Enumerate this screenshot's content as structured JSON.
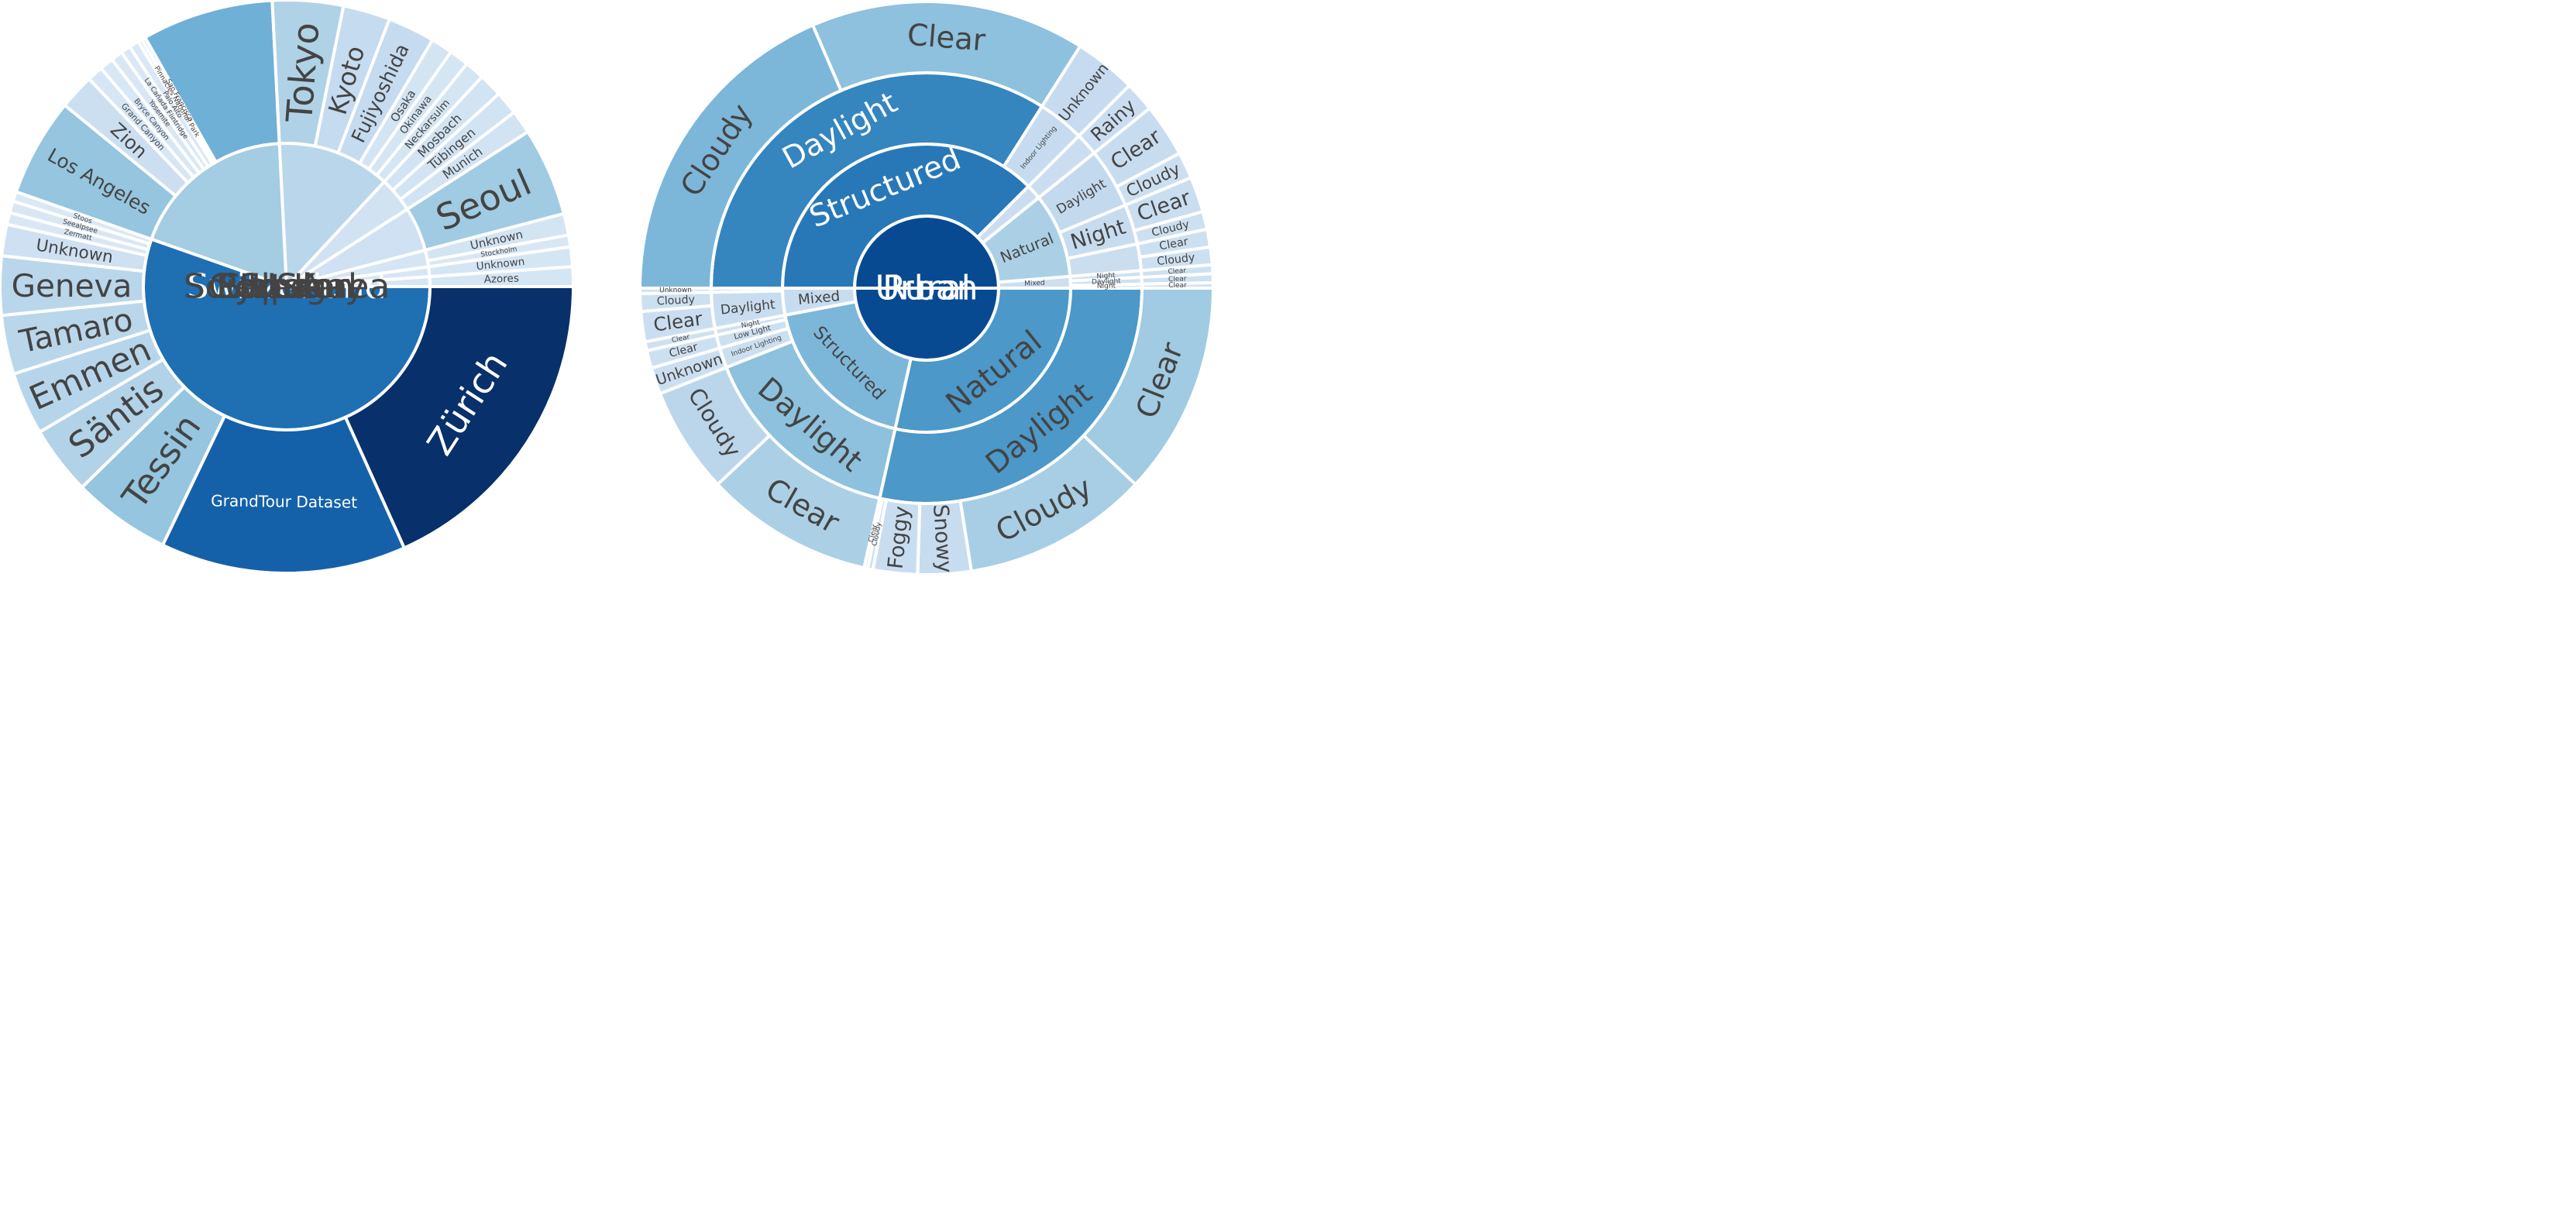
{
  "chart_data": [
    {
      "type": "sunburst",
      "root": {
        "name": "",
        "children": [
          {
            "name": "Switzerland",
            "value": 0.5,
            "children": [
              {
                "name": "Zürich",
                "value": 0.165
              },
              {
                "name": "GrandTour Dataset",
                "value": 0.125
              },
              {
                "name": "Tessin",
                "value": 0.05
              },
              {
                "name": "Säntis",
                "value": 0.035
              },
              {
                "name": "Emmen",
                "value": 0.032
              },
              {
                "name": "Tamaro",
                "value": 0.03
              },
              {
                "name": "Geneva",
                "value": 0.03
              },
              {
                "name": "Unknown",
                "value": 0.016
              },
              {
                "name": "Zermatt",
                "value": 0.006
              },
              {
                "name": "Seealpsee",
                "value": 0.006
              },
              {
                "name": "Stoos",
                "value": 0.005
              }
            ]
          },
          {
            "name": "USA",
            "value": 0.17,
            "children": [
              {
                "name": "Los Angeles",
                "value": 0.05
              },
              {
                "name": "Zion",
                "value": 0.018
              },
              {
                "name": "Grand Canyon",
                "value": 0.008
              },
              {
                "name": "Bryce Canyon",
                "value": 0.007
              },
              {
                "name": "Yosemite",
                "value": 0.006
              },
              {
                "name": "La Cañada Flintridge",
                "value": 0.005
              },
              {
                "name": "Palo Alto",
                "value": 0.005
              },
              {
                "name": "Pinnacles National Park",
                "value": 0.002
              },
              {
                "name": "San Francisco",
                "value": 0.002
              },
              {
                "name": "",
                "value": 0.067
              }
            ]
          },
          {
            "name": "Japan",
            "value": 0.115,
            "children": [
              {
                "name": "Tokyo",
                "value": 0.036
              },
              {
                "name": "Kyoto",
                "value": 0.024
              },
              {
                "name": "Fujiyoshida",
                "value": 0.024
              },
              {
                "name": "Osaka",
                "value": 0.011
              },
              {
                "name": "Okinawa",
                "value": 0.01
              },
              {
                "name": "Neckarsulm",
                "value": 0.01
              }
            ]
          },
          {
            "name": "Germany",
            "value": 0.036,
            "children": [
              {
                "name": "Mosbach",
                "value": 0.012
              },
              {
                "name": "Tübingen",
                "value": 0.012
              },
              {
                "name": "Munich",
                "value": 0.012
              }
            ]
          },
          {
            "name": "South Korea",
            "value": 0.045,
            "children": [
              {
                "name": "Seoul",
                "value": 0.045
              }
            ]
          },
          {
            "name": "Sweden",
            "value": 0.017,
            "children": [
              {
                "name": "Unknown",
                "value": 0.011
              },
              {
                "name": "Stockholm",
                "value": 0.006
              }
            ]
          },
          {
            "name": "Spain",
            "value": 0.01,
            "children": [
              {
                "name": "Unknown",
                "value": 0.01
              }
            ]
          },
          {
            "name": "Portugal",
            "value": 0.01,
            "children": [
              {
                "name": "Azores",
                "value": 0.01
              }
            ]
          }
        ]
      }
    },
    {
      "type": "sunburst",
      "root": {
        "name": "",
        "children": [
          {
            "name": "Rural",
            "value": 0.5,
            "children": [
              {
                "name": "Natural",
                "value": 0.285,
                "children": [
                  {
                    "name": "Daylight",
                    "value": 0.285,
                    "children": [
                      {
                        "name": "Clear",
                        "value": 0.12
                      },
                      {
                        "name": "Cloudy",
                        "value": 0.105
                      },
                      {
                        "name": "Snowy",
                        "value": 0.03
                      },
                      {
                        "name": "Foggy",
                        "value": 0.025
                      },
                      {
                        "name": "Cloudy",
                        "value": 0.003
                      },
                      {
                        "name": "Clear",
                        "value": 0.002
                      }
                    ]
                  }
                ]
              },
              {
                "name": "Structured",
                "value": 0.185,
                "children": [
                  {
                    "name": "Daylight",
                    "value": 0.155,
                    "children": [
                      {
                        "name": "Clear",
                        "value": 0.095
                      },
                      {
                        "name": "Cloudy",
                        "value": 0.06
                      }
                    ]
                  },
                  {
                    "name": "Indoor Lighting",
                    "value": 0.015,
                    "children": [
                      {
                        "name": "Unknown",
                        "value": 0.015
                      }
                    ]
                  },
                  {
                    "name": "Low Light",
                    "value": 0.01,
                    "children": [
                      {
                        "name": "Clear",
                        "value": 0.01
                      }
                    ]
                  },
                  {
                    "name": "Night",
                    "value": 0.005,
                    "children": [
                      {
                        "name": "Clear",
                        "value": 0.005
                      }
                    ]
                  }
                ]
              },
              {
                "name": "Mixed",
                "value": 0.03,
                "children": [
                  {
                    "name": "Daylight",
                    "value": 0.027,
                    "children": [
                      {
                        "name": "Clear",
                        "value": 0.017
                      },
                      {
                        "name": "Cloudy",
                        "value": 0.01
                      }
                    ]
                  },
                  {
                    "name": "",
                    "value": 0.003,
                    "children": [
                      {
                        "name": "Unknown",
                        "value": 0.003
                      }
                    ]
                  }
                ]
              }
            ]
          },
          {
            "name": "Urban",
            "value": 0.5,
            "children": [
              {
                "name": "Structured",
                "value": 0.375,
                "children": [
                  {
                    "name": "Daylight",
                    "value": 0.34,
                    "children": [
                      {
                        "name": "Cloudy",
                        "value": 0.185
                      },
                      {
                        "name": "Clear",
                        "value": 0.155
                      }
                    ]
                  },
                  {
                    "name": "Indoor Lighting",
                    "value": 0.035,
                    "children": [
                      {
                        "name": "Unknown",
                        "value": 0.035
                      }
                    ]
                  }
                ]
              },
              {
                "name": "",
                "value": 0.017,
                "children": [
                  {
                    "name": "",
                    "value": 0.017,
                    "children": [
                      {
                        "name": "Rainy",
                        "value": 0.017
                      }
                    ]
                  }
                ]
              },
              {
                "name": "Natural",
                "value": 0.095,
                "children": [
                  {
                    "name": "Daylight",
                    "value": 0.045,
                    "children": [
                      {
                        "name": "Clear",
                        "value": 0.03
                      },
                      {
                        "name": "Cloudy",
                        "value": 0.015
                      }
                    ]
                  },
                  {
                    "name": "Night",
                    "value": 0.03,
                    "children": [
                      {
                        "name": "Clear",
                        "value": 0.02
                      },
                      {
                        "name": "Cloudy",
                        "value": 0.01
                      }
                    ]
                  },
                  {
                    "name": "",
                    "value": 0.02,
                    "children": [
                      {
                        "name": "Clear",
                        "value": 0.01
                      },
                      {
                        "name": "Cloudy",
                        "value": 0.01
                      }
                    ]
                  }
                ]
              },
              {
                "name": "Mixed",
                "value": 0.013,
                "children": [
                  {
                    "name": "Night",
                    "value": 0.005,
                    "children": [
                      {
                        "name": "Clear",
                        "value": 0.005
                      }
                    ]
                  },
                  {
                    "name": "Daylight",
                    "value": 0.005,
                    "children": [
                      {
                        "name": "Clear",
                        "value": 0.005
                      }
                    ]
                  },
                  {
                    "name": "Night",
                    "value": 0.003,
                    "children": [
                      {
                        "name": "Clear",
                        "value": 0.003
                      }
                    ]
                  }
                ]
              }
            ]
          }
        ]
      }
    }
  ]
}
